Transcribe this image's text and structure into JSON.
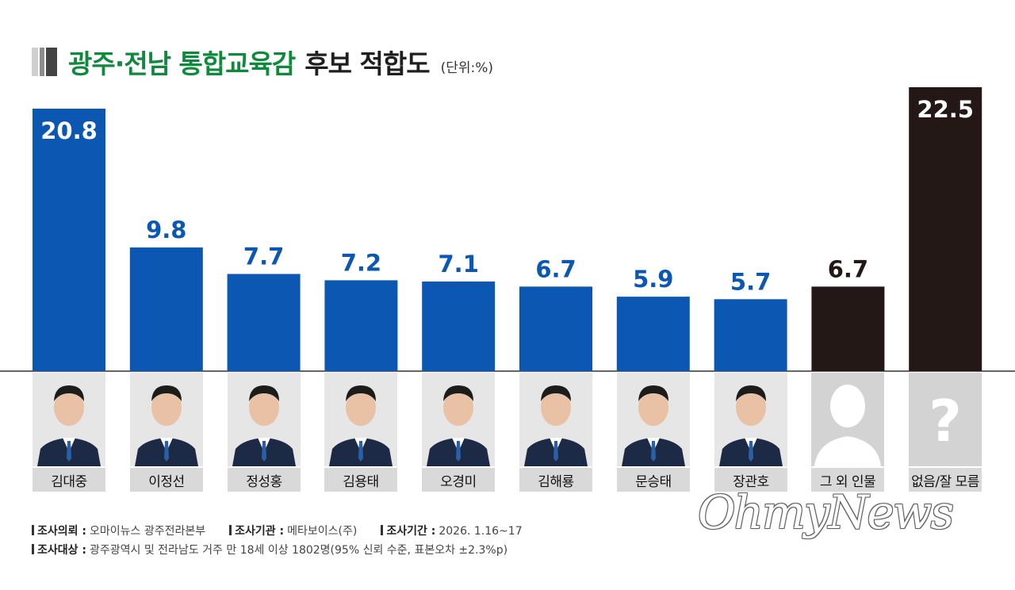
{
  "title": {
    "green": "광주·전남 통합교육감",
    "dark": "후보 적합도",
    "unit": "(단위:%)"
  },
  "colors": {
    "blue": "#0b57b2",
    "dark": "#231816",
    "green": "#0f8a3c"
  },
  "chart_data": {
    "type": "bar",
    "categories": [
      "김대중",
      "이정선",
      "정성홍",
      "김용태",
      "오경미",
      "김해룡",
      "문승태",
      "장관호",
      "그 외 인물",
      "없음/잘 모름"
    ],
    "values": [
      20.8,
      9.8,
      7.7,
      7.2,
      7.1,
      6.7,
      5.9,
      5.7,
      6.7,
      22.5
    ],
    "value_labels": [
      "20.8",
      "9.8",
      "7.7",
      "7.2",
      "7.1",
      "6.7",
      "5.9",
      "5.7",
      "6.7",
      "22.5"
    ],
    "bar_colors": [
      "blue",
      "blue",
      "blue",
      "blue",
      "blue",
      "blue",
      "blue",
      "blue",
      "dark",
      "dark"
    ],
    "title": "광주·전남 통합교육감 후보 적합도",
    "ylim": [
      0,
      22.5
    ],
    "grid": false
  },
  "photos": [
    "candidate-photo",
    "candidate-photo",
    "candidate-photo",
    "candidate-photo",
    "candidate-photo",
    "candidate-photo",
    "candidate-photo",
    "candidate-photo",
    "silhouette",
    "question-mark"
  ],
  "footer": {
    "client_label": "조사의뢰 :",
    "client": "오마이뉴스 광주전라본부",
    "agency_label": "조사기관 :",
    "agency": "메타보이스(주)",
    "period_label": "조사기간 :",
    "period": "2026. 1.16~17",
    "target_label": "조사대상 :",
    "target": "광주광역시 및 전라남도 거주 만 18세 이상 1802명(95% 신뢰 수준, 표본오차 ±2.3%p)"
  },
  "watermark": "OhmyNews"
}
